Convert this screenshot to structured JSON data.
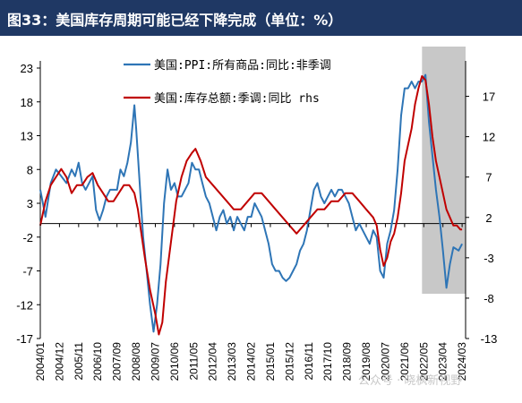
{
  "header": {
    "title": "图33：美国库存周期可能已经下降完成（单位：%）"
  },
  "watermark": "公众号 · 晓枫新视野",
  "colors": {
    "title_bg": "#1f3864",
    "ppi": "#2e75b6",
    "inventory": "#c00000",
    "shade": "#c8c8c8"
  },
  "chart_data": {
    "type": "line",
    "title": "",
    "legend_position": "top-center",
    "grid": false,
    "y_left": {
      "lim": [
        -17,
        23
      ],
      "ticks": [
        23,
        18,
        13,
        8,
        3,
        -2,
        -7,
        -12,
        -17
      ]
    },
    "y_right": {
      "lim": [
        -13,
        20.5
      ],
      "ticks": [
        17,
        12,
        7,
        2,
        -3,
        -8,
        -13
      ]
    },
    "x_tick_labels": [
      "2004/01",
      "2004/12",
      "2005/11",
      "2006/10",
      "2007/09",
      "2008/08",
      "2009/07",
      "2010/06",
      "2011/05",
      "2012/04",
      "2013/03",
      "2014/02",
      "2015/01",
      "2015/12",
      "2016/11",
      "2017/10",
      "2018/09",
      "2019/08",
      "2020/07",
      "2021/06",
      "2022/05",
      "2023/04",
      "2024/03"
    ],
    "shaded_region": {
      "from": "2022/04",
      "to": "2024/05"
    },
    "series": [
      {
        "name": "美国:PPI:所有商品:同比:非季调",
        "axis": "left",
        "points": [
          [
            "2004/01",
            5
          ],
          [
            "2004/04",
            1
          ],
          [
            "2004/07",
            6
          ],
          [
            "2004/10",
            8
          ],
          [
            "2005/01",
            7
          ],
          [
            "2005/04",
            6
          ],
          [
            "2005/07",
            8
          ],
          [
            "2005/09",
            7
          ],
          [
            "2005/11",
            9
          ],
          [
            "2006/01",
            6
          ],
          [
            "2006/03",
            5
          ],
          [
            "2006/05",
            6
          ],
          [
            "2006/07",
            7
          ],
          [
            "2006/09",
            2
          ],
          [
            "2006/11",
            0.5
          ],
          [
            "2007/01",
            2
          ],
          [
            "2007/03",
            4
          ],
          [
            "2007/05",
            5
          ],
          [
            "2007/07",
            5
          ],
          [
            "2007/09",
            5
          ],
          [
            "2007/11",
            8
          ],
          [
            "2008/01",
            7
          ],
          [
            "2008/03",
            9
          ],
          [
            "2008/05",
            12
          ],
          [
            "2008/07",
            17.5
          ],
          [
            "2008/08",
            14
          ],
          [
            "2008/10",
            6
          ],
          [
            "2008/12",
            -2
          ],
          [
            "2009/02",
            -7
          ],
          [
            "2009/04",
            -12
          ],
          [
            "2009/06",
            -16
          ],
          [
            "2009/08",
            -12
          ],
          [
            "2009/10",
            -6
          ],
          [
            "2009/12",
            3
          ],
          [
            "2010/02",
            8
          ],
          [
            "2010/04",
            5
          ],
          [
            "2010/06",
            6
          ],
          [
            "2010/08",
            4
          ],
          [
            "2010/10",
            4
          ],
          [
            "2010/12",
            5
          ],
          [
            "2011/02",
            6
          ],
          [
            "2011/04",
            9
          ],
          [
            "2011/06",
            8
          ],
          [
            "2011/08",
            8
          ],
          [
            "2011/10",
            6
          ],
          [
            "2011/12",
            4
          ],
          [
            "2012/02",
            3
          ],
          [
            "2012/04",
            1
          ],
          [
            "2012/06",
            -1
          ],
          [
            "2012/08",
            1
          ],
          [
            "2012/10",
            2
          ],
          [
            "2012/12",
            0
          ],
          [
            "2013/02",
            1
          ],
          [
            "2013/04",
            -1
          ],
          [
            "2013/06",
            1
          ],
          [
            "2013/08",
            0
          ],
          [
            "2013/10",
            -1
          ],
          [
            "2013/12",
            1
          ],
          [
            "2014/02",
            1
          ],
          [
            "2014/04",
            3
          ],
          [
            "2014/06",
            2
          ],
          [
            "2014/08",
            1
          ],
          [
            "2014/10",
            -1
          ],
          [
            "2014/12",
            -3
          ],
          [
            "2015/02",
            -6
          ],
          [
            "2015/04",
            -7
          ],
          [
            "2015/06",
            -7
          ],
          [
            "2015/08",
            -8
          ],
          [
            "2015/10",
            -8.5
          ],
          [
            "2015/12",
            -8
          ],
          [
            "2016/02",
            -7
          ],
          [
            "2016/04",
            -6
          ],
          [
            "2016/06",
            -4
          ],
          [
            "2016/08",
            -3
          ],
          [
            "2016/10",
            -1
          ],
          [
            "2016/12",
            2
          ],
          [
            "2017/02",
            5
          ],
          [
            "2017/04",
            6
          ],
          [
            "2017/06",
            4
          ],
          [
            "2017/08",
            3
          ],
          [
            "2017/10",
            4
          ],
          [
            "2017/12",
            5
          ],
          [
            "2018/02",
            4
          ],
          [
            "2018/04",
            5
          ],
          [
            "2018/06",
            5
          ],
          [
            "2018/08",
            4
          ],
          [
            "2018/10",
            3
          ],
          [
            "2018/12",
            1
          ],
          [
            "2019/02",
            -1
          ],
          [
            "2019/04",
            0
          ],
          [
            "2019/06",
            -1
          ],
          [
            "2019/08",
            -2
          ],
          [
            "2019/10",
            -3
          ],
          [
            "2019/12",
            -1
          ],
          [
            "2020/02",
            -2
          ],
          [
            "2020/04",
            -7
          ],
          [
            "2020/06",
            -8
          ],
          [
            "2020/08",
            -3
          ],
          [
            "2020/10",
            -1
          ],
          [
            "2020/12",
            2
          ],
          [
            "2021/02",
            8
          ],
          [
            "2021/04",
            16
          ],
          [
            "2021/06",
            20
          ],
          [
            "2021/08",
            20
          ],
          [
            "2021/10",
            21
          ],
          [
            "2021/12",
            20
          ],
          [
            "2022/02",
            21
          ],
          [
            "2022/04",
            21
          ],
          [
            "2022/06",
            22
          ],
          [
            "2022/08",
            15
          ],
          [
            "2022/10",
            10
          ],
          [
            "2022/12",
            5
          ],
          [
            "2023/02",
            1
          ],
          [
            "2023/04",
            -4
          ],
          [
            "2023/06",
            -9.5
          ],
          [
            "2023/08",
            -6
          ],
          [
            "2023/10",
            -3.5
          ],
          [
            "2024/01",
            -4
          ],
          [
            "2024/03",
            -3
          ]
        ]
      },
      {
        "name": "美国:库存总额:季调:同比 rhs",
        "axis": "right",
        "points": [
          [
            "2004/01",
            1
          ],
          [
            "2004/04",
            4
          ],
          [
            "2004/07",
            6
          ],
          [
            "2004/10",
            7
          ],
          [
            "2005/01",
            8
          ],
          [
            "2005/04",
            7
          ],
          [
            "2005/07",
            5
          ],
          [
            "2005/10",
            6
          ],
          [
            "2006/01",
            6
          ],
          [
            "2006/04",
            7
          ],
          [
            "2006/07",
            7.5
          ],
          [
            "2006/10",
            6
          ],
          [
            "2007/01",
            5
          ],
          [
            "2007/04",
            4
          ],
          [
            "2007/07",
            4
          ],
          [
            "2007/10",
            5
          ],
          [
            "2008/01",
            6
          ],
          [
            "2008/04",
            6
          ],
          [
            "2008/07",
            5
          ],
          [
            "2008/09",
            3
          ],
          [
            "2008/11",
            0
          ],
          [
            "2009/01",
            -3
          ],
          [
            "2009/04",
            -7
          ],
          [
            "2009/07",
            -10
          ],
          [
            "2009/09",
            -12.5
          ],
          [
            "2009/11",
            -11
          ],
          [
            "2010/01",
            -6
          ],
          [
            "2010/04",
            -1
          ],
          [
            "2010/07",
            4
          ],
          [
            "2010/10",
            7
          ],
          [
            "2011/01",
            9
          ],
          [
            "2011/04",
            10
          ],
          [
            "2011/06",
            10.5
          ],
          [
            "2011/09",
            9
          ],
          [
            "2011/12",
            7
          ],
          [
            "2012/04",
            6
          ],
          [
            "2012/08",
            5
          ],
          [
            "2012/12",
            4
          ],
          [
            "2013/04",
            3
          ],
          [
            "2013/08",
            3
          ],
          [
            "2013/12",
            4
          ],
          [
            "2014/04",
            5
          ],
          [
            "2014/08",
            5
          ],
          [
            "2014/12",
            4
          ],
          [
            "2015/04",
            3
          ],
          [
            "2015/08",
            2
          ],
          [
            "2015/12",
            1
          ],
          [
            "2016/04",
            0
          ],
          [
            "2016/08",
            1
          ],
          [
            "2016/12",
            2
          ],
          [
            "2017/04",
            3
          ],
          [
            "2017/08",
            3
          ],
          [
            "2017/12",
            4
          ],
          [
            "2018/04",
            4
          ],
          [
            "2018/08",
            5
          ],
          [
            "2018/12",
            5
          ],
          [
            "2019/04",
            4
          ],
          [
            "2019/08",
            3
          ],
          [
            "2019/12",
            2
          ],
          [
            "2020/02",
            1
          ],
          [
            "2020/04",
            -2
          ],
          [
            "2020/06",
            -4
          ],
          [
            "2020/08",
            -3
          ],
          [
            "2020/10",
            -1
          ],
          [
            "2020/12",
            0
          ],
          [
            "2021/02",
            2
          ],
          [
            "2021/04",
            5
          ],
          [
            "2021/06",
            9
          ],
          [
            "2021/08",
            11
          ],
          [
            "2021/10",
            13
          ],
          [
            "2021/12",
            16
          ],
          [
            "2022/02",
            18
          ],
          [
            "2022/04",
            19.5
          ],
          [
            "2022/06",
            19
          ],
          [
            "2022/08",
            16
          ],
          [
            "2022/10",
            12
          ],
          [
            "2022/12",
            9
          ],
          [
            "2023/02",
            7
          ],
          [
            "2023/04",
            5
          ],
          [
            "2023/06",
            3
          ],
          [
            "2023/08",
            2
          ],
          [
            "2023/10",
            1
          ],
          [
            "2023/12",
            1
          ],
          [
            "2024/02",
            0.5
          ],
          [
            "2024/03",
            0.5
          ]
        ]
      }
    ]
  }
}
